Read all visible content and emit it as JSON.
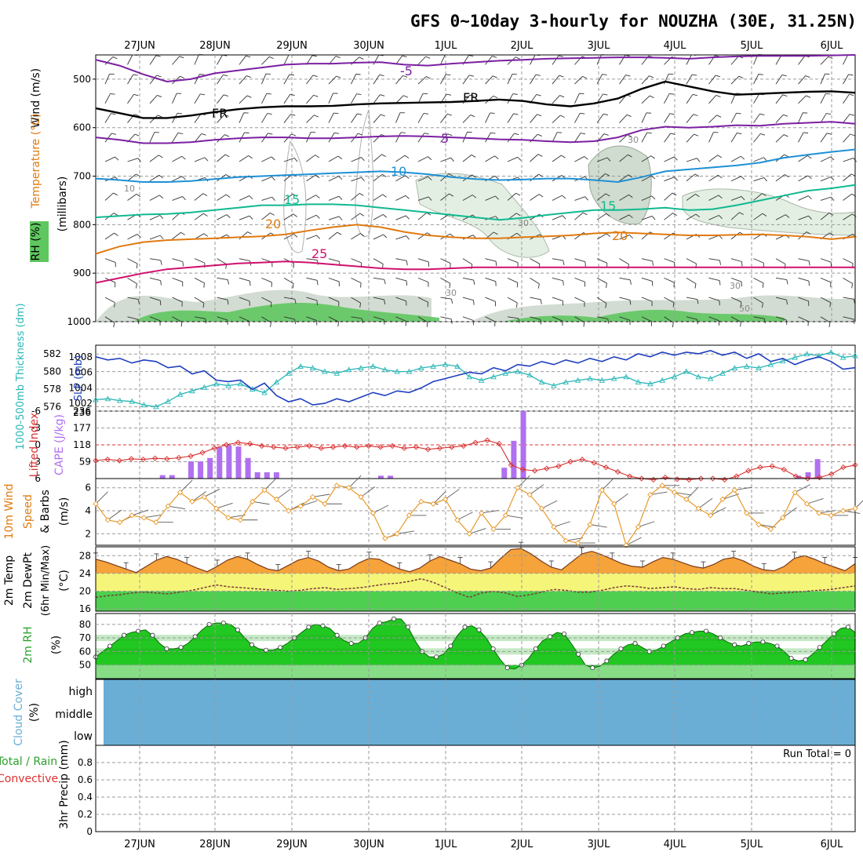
{
  "title": "GFS 0~10day 3-hourly for NOUZHA (30E, 31.25N)",
  "colors": {
    "background": "#ffffff",
    "grid": "#9a9a9a",
    "temp_orange": "#e07a10",
    "wind_barb": "#5a5a5a",
    "freezing": "#000000",
    "cold_5": "#7b1fa2",
    "blue_10": "#1e90d6",
    "teal_15": "#10b990",
    "rh_green": "#5fc75f",
    "slp_blue": "#1f3fbf",
    "thick_cyan": "#29b6b6",
    "li_red": "#d83030",
    "cape_purple": "#b070f0",
    "cloud_blue": "#6aaed6",
    "precip_green": "#2ca02c",
    "precip_red": "#e03030"
  },
  "chart_data": [
    {
      "type": "contour",
      "panel": "upper-air",
      "ylabel_parts": {
        "rh": "RH (%)",
        "temp": "Temperature (°C)",
        "wind": "Wind (m/s)",
        "units": "(millibars)"
      },
      "yticks": [
        "500",
        "600",
        "700",
        "800",
        "900",
        "1000"
      ],
      "ylim": [
        1000,
        450
      ],
      "x_ticks": [
        "27JUN",
        "28JUN",
        "29JUN",
        "30JUN",
        "1JUL",
        "2JUL",
        "3JUL",
        "4JUL",
        "5JUL",
        "6JUL"
      ],
      "contour_labels": [
        "-5",
        "FR",
        "FR",
        "5",
        "10",
        "15",
        "15",
        "20",
        "20",
        "25",
        "30",
        "30",
        "30",
        "50",
        "10",
        "30"
      ],
      "isotherms": [
        {
          "label": "-5",
          "color": "#7b1fa2",
          "levels": [
            460,
            472,
            490,
            505,
            500,
            488,
            482,
            476,
            470,
            468,
            468,
            466,
            465,
            470,
            472,
            468,
            465,
            462,
            460,
            458,
            457,
            456,
            455,
            455,
            456,
            458,
            455,
            453,
            452,
            452,
            452,
            451,
            450
          ]
        },
        {
          "label": "FR",
          "color": "#000000",
          "levels": [
            560,
            570,
            580,
            580,
            575,
            568,
            562,
            558,
            556,
            556,
            555,
            552,
            550,
            549,
            548,
            547,
            545,
            542,
            545,
            552,
            556,
            550,
            540,
            520,
            505,
            515,
            525,
            532,
            530,
            528,
            526,
            525,
            528
          ]
        },
        {
          "label": "5",
          "color": "#7b1fa2",
          "levels": [
            620,
            625,
            632,
            632,
            630,
            625,
            622,
            620,
            620,
            622,
            622,
            620,
            618,
            617,
            618,
            620,
            622,
            624,
            625,
            628,
            630,
            628,
            620,
            605,
            598,
            600,
            598,
            595,
            596,
            592,
            590,
            588,
            592
          ]
        },
        {
          "label": "10",
          "color": "#1e90d6",
          "levels": [
            705,
            708,
            712,
            712,
            710,
            706,
            702,
            700,
            698,
            696,
            694,
            692,
            690,
            692,
            696,
            702,
            706,
            708,
            707,
            705,
            705,
            708,
            712,
            702,
            690,
            686,
            682,
            678,
            672,
            662,
            656,
            650,
            645
          ]
        },
        {
          "label": "15",
          "color": "#10b990",
          "levels": [
            785,
            782,
            779,
            778,
            775,
            770,
            765,
            760,
            760,
            758,
            758,
            760,
            765,
            770,
            775,
            780,
            785,
            790,
            786,
            780,
            775,
            770,
            770,
            768,
            765,
            770,
            768,
            760,
            750,
            740,
            730,
            725,
            718
          ]
        },
        {
          "label": "20",
          "color": "#e07a10",
          "levels": [
            860,
            845,
            836,
            832,
            830,
            828,
            826,
            824,
            820,
            812,
            805,
            800,
            805,
            815,
            822,
            826,
            828,
            828,
            826,
            824,
            822,
            818,
            816,
            818,
            820,
            822,
            822,
            821,
            820,
            822,
            825,
            830,
            825
          ]
        },
        {
          "label": "25",
          "color": "#d0106e",
          "levels": [
            920,
            910,
            900,
            892,
            888,
            884,
            880,
            878,
            876,
            878,
            882,
            886,
            890,
            892,
            892,
            890,
            888,
            888,
            888,
            888,
            888,
            888,
            888,
            888,
            888,
            888,
            888,
            888,
            888,
            888,
            888,
            888,
            888
          ]
        }
      ]
    },
    {
      "type": "line",
      "panel": "slp-thickness",
      "ylabel_left": "1000-500mb Thickness (dm)",
      "ylabel_right": "SLP (mb)",
      "yticks_left": [
        "576",
        "578",
        "580",
        "582"
      ],
      "yticks_right": [
        "1002",
        "1004",
        "1006",
        "1008"
      ],
      "ylim_thickness": [
        575.5,
        583
      ],
      "ylim_slp": [
        1001,
        1009.5
      ],
      "series": [
        {
          "name": "SLP",
          "axis": "right",
          "values": [
            1008.0,
            1007.6,
            1007.8,
            1007.2,
            1007.6,
            1007.4,
            1006.6,
            1006.8,
            1005.8,
            1006.2,
            1005.0,
            1004.8,
            1005.0,
            1003.8,
            1004.6,
            1003.0,
            1002.2,
            1002.6,
            1001.8,
            1002.0,
            1002.6,
            1002.2,
            1002.8,
            1003.4,
            1003.0,
            1003.6,
            1003.4,
            1004.0,
            1004.8,
            1005.2,
            1005.6,
            1006.0,
            1005.8,
            1006.6,
            1006.2,
            1007.0,
            1006.8,
            1007.4,
            1007.0,
            1007.6,
            1007.2,
            1007.8,
            1007.4,
            1008.0,
            1007.6,
            1008.4,
            1008.0,
            1008.6,
            1008.2,
            1008.6,
            1008.4,
            1008.8,
            1008.2,
            1008.6,
            1007.8,
            1008.4,
            1007.4,
            1007.8,
            1007.0,
            1007.6,
            1008.0,
            1007.4,
            1006.4,
            1006.6
          ]
        },
        {
          "name": "Thickness",
          "axis": "left",
          "values": [
            576.8,
            576.9,
            576.7,
            576.6,
            576.2,
            576.0,
            576.6,
            577.4,
            577.8,
            578.2,
            578.6,
            578.4,
            578.6,
            578.0,
            577.6,
            578.8,
            579.8,
            580.6,
            580.4,
            580.0,
            579.8,
            580.2,
            580.4,
            580.6,
            580.2,
            580.0,
            580.0,
            580.4,
            580.6,
            580.8,
            580.6,
            579.4,
            579.0,
            579.4,
            579.8,
            580.0,
            579.6,
            578.8,
            578.4,
            578.8,
            579.0,
            579.2,
            579.0,
            579.2,
            579.4,
            578.8,
            578.6,
            579.0,
            579.4,
            580.0,
            579.4,
            579.2,
            579.8,
            580.4,
            580.6,
            580.4,
            580.8,
            581.2,
            581.6,
            582.0,
            581.8,
            582.2,
            581.6,
            581.8
          ]
        }
      ]
    },
    {
      "type": "bar-line",
      "panel": "cape-li",
      "ylabel_left": "Lifted Index",
      "ylabel_right": "CAPE (J/kg)",
      "yticks_left": [
        "-6",
        "-3",
        "0",
        "3",
        "6"
      ],
      "yticks_right": [
        "59",
        "118",
        "177",
        "236"
      ],
      "li_ylim": [
        6,
        -6
      ],
      "cape_ylim": [
        0,
        236
      ],
      "cape": {
        "name": "CAPE",
        "x_index": [
          7,
          8,
          10,
          11,
          12,
          13,
          14,
          15,
          16,
          17,
          18,
          19,
          30,
          31,
          43,
          44,
          45,
          46,
          74,
          75,
          76
        ],
        "values": [
          12,
          12,
          60,
          60,
          72,
          110,
          116,
          112,
          72,
          22,
          22,
          22,
          10,
          10,
          38,
          132,
          236,
          0,
          10,
          22,
          68
        ]
      },
      "li": {
        "name": "Lifted Index",
        "values": [
          2.8,
          2.6,
          2.8,
          2.5,
          2.6,
          2.4,
          2.5,
          2.3,
          2.0,
          1.4,
          0.6,
          0.0,
          -0.4,
          -0.2,
          0.2,
          0.4,
          0.6,
          0.4,
          0.2,
          0.6,
          0.4,
          0.2,
          0.4,
          0.2,
          0.4,
          0.2,
          0.6,
          0.4,
          0.8,
          0.6,
          0.4,
          0.2,
          -0.4,
          -0.8,
          -0.2,
          3.6,
          4.4,
          4.6,
          4.2,
          3.8,
          3.0,
          2.6,
          3.2,
          4.0,
          4.8,
          5.6,
          6.0,
          6.2,
          5.8,
          6.1,
          6.2,
          6.0,
          6.0,
          6.2,
          5.6,
          4.6,
          4.0,
          3.8,
          4.4,
          5.6,
          6.0,
          5.8,
          5.2,
          4.0,
          3.6
        ]
      }
    },
    {
      "type": "line",
      "panel": "wind10m",
      "ylabel": "10m Wind Speed & Barbs (m/s)",
      "yticks": [
        "2",
        "4",
        "6"
      ],
      "ylim": [
        1,
        6.8
      ],
      "series": [
        {
          "name": "10m Wind",
          "values": [
            4.6,
            3.2,
            3.0,
            3.6,
            3.4,
            3.0,
            4.4,
            5.6,
            4.8,
            5.2,
            4.2,
            3.4,
            3.2,
            4.8,
            5.8,
            5.0,
            4.0,
            4.4,
            5.2,
            4.6,
            6.2,
            6.0,
            5.2,
            3.8,
            1.6,
            2.0,
            3.6,
            4.8,
            4.6,
            5.0,
            3.2,
            2.0,
            3.8,
            2.4,
            3.6,
            6.0,
            5.4,
            4.2,
            2.6,
            1.4,
            1.2,
            2.8,
            5.8,
            4.6,
            1.0,
            2.6,
            5.4,
            6.2,
            5.6,
            5.0,
            4.2,
            3.6,
            5.0,
            5.8,
            3.8,
            2.8,
            2.4,
            3.4,
            5.6,
            4.6,
            3.8,
            3.6,
            4.0,
            4.2
          ]
        }
      ]
    },
    {
      "type": "area",
      "panel": "temp2m",
      "ylabel": "2m Temp / 2m DewPt (6hr Min/Max) (°C)",
      "yticks": [
        "16",
        "20",
        "24",
        "28"
      ],
      "ylim": [
        15.5,
        30
      ],
      "series": [
        {
          "name": "2m Temp",
          "values": [
            27.2,
            26.6,
            25.8,
            25.0,
            24.2,
            25.6,
            27.0,
            27.8,
            27.2,
            26.2,
            25.2,
            24.4,
            25.6,
            27.0,
            27.8,
            27.2,
            26.0,
            25.0,
            24.6,
            25.8,
            27.0,
            27.6,
            26.8,
            25.4,
            24.6,
            25.0,
            26.4,
            27.4,
            27.2,
            26.0,
            25.0,
            24.4,
            25.2,
            26.8,
            27.8,
            27.0,
            26.2,
            25.0,
            24.6,
            25.2,
            27.4,
            29.4,
            29.6,
            28.4,
            26.8,
            25.4,
            24.8,
            26.6,
            28.4,
            29.0,
            28.2,
            27.2,
            26.2,
            25.6,
            25.4,
            26.6,
            27.6,
            27.2,
            26.4,
            25.6,
            25.2,
            26.0,
            27.2,
            27.6,
            26.8,
            25.6,
            24.8,
            24.6,
            25.6,
            27.4,
            28.0,
            27.2,
            26.2,
            25.4,
            24.6,
            26.2
          ]
        },
        {
          "name": "2m DewPt",
          "values": [
            18.6,
            19.0,
            19.2,
            19.6,
            19.8,
            19.6,
            19.4,
            19.8,
            20.2,
            20.8,
            21.4,
            21.0,
            20.8,
            20.6,
            20.4,
            20.2,
            20.0,
            20.2,
            20.6,
            20.8,
            20.4,
            20.6,
            20.8,
            21.2,
            21.6,
            21.8,
            22.2,
            22.8,
            22.0,
            20.8,
            19.6,
            18.6,
            19.6,
            20.0,
            19.6,
            18.8,
            19.2,
            19.8,
            20.4,
            20.2,
            19.8,
            19.8,
            20.2,
            20.8,
            21.2,
            21.0,
            20.6,
            20.8,
            21.0,
            20.6,
            20.4,
            20.8,
            20.6,
            20.6,
            20.2,
            19.8,
            19.4,
            19.6,
            19.8,
            20.0,
            20.2,
            20.4,
            20.8,
            21.2
          ]
        }
      ]
    },
    {
      "type": "area",
      "panel": "rh2m",
      "ylabel": "2m RH (%)",
      "yticks": [
        "50",
        "60",
        "70",
        "80"
      ],
      "ylim": [
        40,
        88
      ],
      "series": [
        {
          "name": "2m RH",
          "values": [
            56,
            60,
            64,
            68,
            72,
            74,
            75,
            76,
            72,
            66,
            62,
            62,
            63,
            66,
            71,
            76,
            80,
            81,
            81,
            80,
            76,
            70,
            65,
            62,
            61,
            61,
            63,
            66,
            70,
            74,
            78,
            80,
            79,
            77,
            72,
            68,
            66,
            66,
            70,
            77,
            81,
            82,
            84,
            84,
            78,
            68,
            60,
            56,
            56,
            58,
            64,
            72,
            78,
            79,
            76,
            70,
            62,
            54,
            48,
            47,
            50,
            55,
            62,
            68,
            71,
            74,
            73,
            66,
            58,
            50,
            48,
            49,
            53,
            58,
            62,
            65,
            66,
            63,
            60,
            61,
            64,
            67,
            70,
            73,
            74,
            75,
            75,
            73,
            70,
            67,
            65,
            64,
            66,
            67,
            67,
            66,
            64,
            60,
            55,
            53,
            54,
            58,
            63,
            68,
            73,
            77,
            78,
            74
          ]
        }
      ]
    },
    {
      "type": "bar",
      "panel": "cloud",
      "ylabel": "Cloud Cover (%)",
      "categories": [
        "high",
        "middle",
        "low"
      ],
      "values": [
        100,
        100,
        100
      ]
    },
    {
      "type": "bar",
      "panel": "precip",
      "ylabel_parts": {
        "total": "Total / Rain",
        "conv": "Convective",
        "units": "3hr Precip (mm)"
      },
      "yticks": [
        "0",
        "0.2",
        "0.4",
        "0.6",
        "0.8"
      ],
      "ylim": [
        0,
        1.0
      ],
      "run_total": "Run Total = 0",
      "values": []
    }
  ]
}
